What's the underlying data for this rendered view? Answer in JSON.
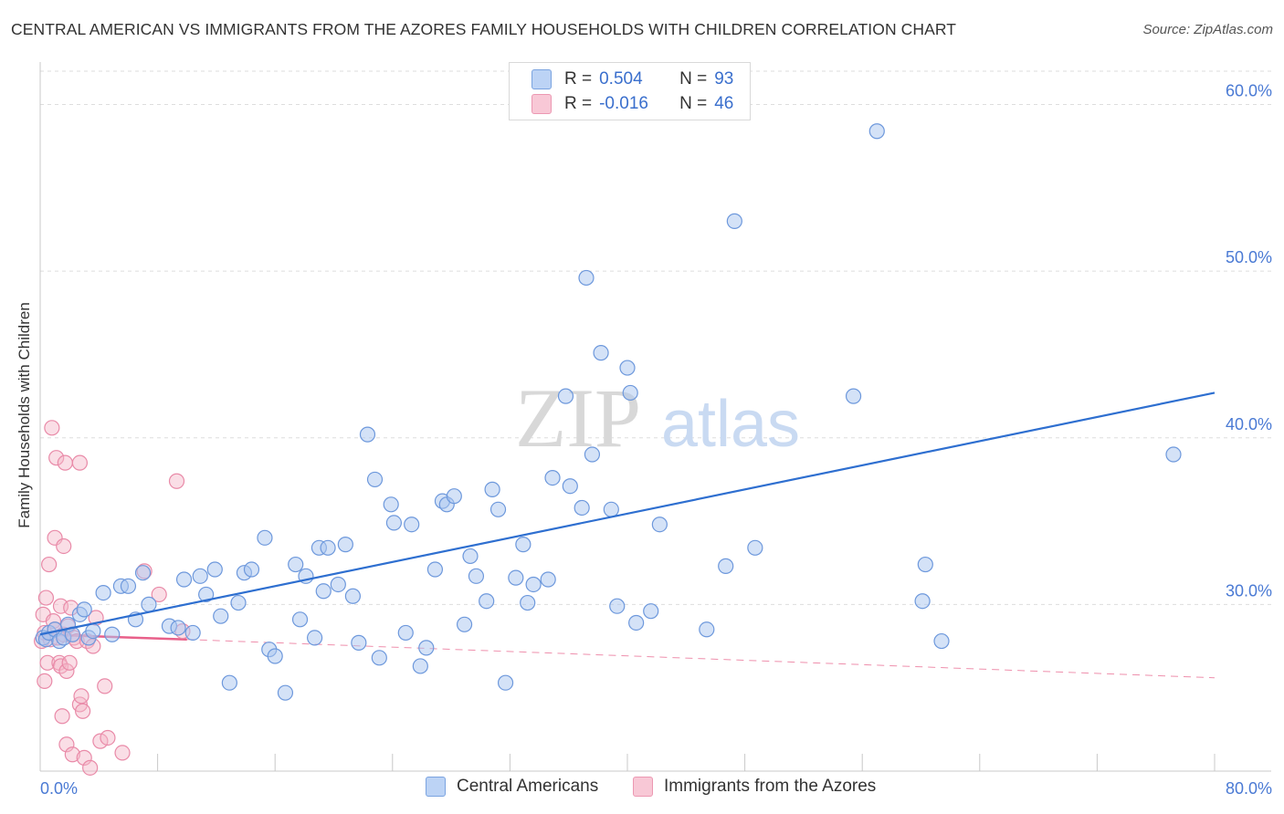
{
  "title": "CENTRAL AMERICAN VS IMMIGRANTS FROM THE AZORES FAMILY HOUSEHOLDS WITH CHILDREN CORRELATION CHART",
  "source": "Source: ZipAtlas.com",
  "watermark": {
    "zip": "ZIP",
    "atlas": "atlas"
  },
  "legend_top": [
    {
      "r_label": "R =",
      "r_value": "0.504",
      "n_label": "N =",
      "n_value": "93"
    },
    {
      "r_label": "R =",
      "r_value": "-0.016",
      "n_label": "N =",
      "n_value": "46"
    }
  ],
  "legend_bottom": [
    "Central Americans",
    "Immigrants from the Azores"
  ],
  "colors": {
    "blue_fill": "#a9c5f0",
    "blue_stroke": "#6d98dc",
    "blue_line": "#2e6fd0",
    "pink_fill": "#f5b5c8",
    "pink_stroke": "#e98aa8",
    "pink_line": "#e8608a",
    "tick_label": "#4a7ad4",
    "grid": "#dddddd"
  },
  "chart_data": {
    "type": "scatter",
    "title": "CENTRAL AMERICAN VS IMMIGRANTS FROM THE AZORES FAMILY HOUSEHOLDS WITH CHILDREN CORRELATION CHART",
    "xlabel": "",
    "ylabel": "Family Households with Children",
    "xlim": [
      0,
      80
    ],
    "ylim": [
      20,
      62
    ],
    "x_tick_labels": [
      "0.0%",
      "80.0%"
    ],
    "y_ticks": [
      30,
      40,
      50,
      60
    ],
    "y_tick_labels": [
      "30.0%",
      "40.0%",
      "50.0%",
      "60.0%"
    ],
    "grid": true,
    "legend_position": "top-center",
    "series": [
      {
        "name": "Central Americans",
        "r": 0.504,
        "n": 93,
        "trend": {
          "x0": 0.0,
          "y0": 28.2,
          "x1": 80.0,
          "y1": 42.7,
          "style": "solid"
        },
        "points": [
          [
            0.2,
            28.0
          ],
          [
            0.4,
            27.9
          ],
          [
            0.6,
            28.3
          ],
          [
            1.0,
            28.5
          ],
          [
            1.3,
            27.8
          ],
          [
            1.6,
            28.0
          ],
          [
            1.9,
            28.8
          ],
          [
            2.2,
            28.2
          ],
          [
            2.7,
            29.4
          ],
          [
            3.0,
            29.7
          ],
          [
            3.3,
            28.0
          ],
          [
            3.6,
            28.4
          ],
          [
            4.3,
            30.7
          ],
          [
            4.9,
            28.2
          ],
          [
            5.5,
            31.1
          ],
          [
            6.0,
            31.1
          ],
          [
            6.5,
            29.1
          ],
          [
            7.0,
            31.9
          ],
          [
            7.4,
            30.0
          ],
          [
            8.8,
            28.7
          ],
          [
            9.4,
            28.6
          ],
          [
            9.8,
            31.5
          ],
          [
            10.4,
            28.3
          ],
          [
            10.9,
            31.7
          ],
          [
            11.3,
            30.6
          ],
          [
            11.9,
            32.1
          ],
          [
            12.3,
            29.3
          ],
          [
            12.9,
            25.3
          ],
          [
            13.5,
            30.1
          ],
          [
            13.9,
            31.9
          ],
          [
            14.4,
            32.1
          ],
          [
            15.3,
            34.0
          ],
          [
            15.6,
            27.3
          ],
          [
            16.0,
            26.9
          ],
          [
            16.7,
            24.7
          ],
          [
            17.4,
            32.4
          ],
          [
            17.7,
            29.1
          ],
          [
            18.1,
            31.7
          ],
          [
            18.7,
            28.0
          ],
          [
            19.0,
            33.4
          ],
          [
            19.3,
            30.8
          ],
          [
            19.6,
            33.4
          ],
          [
            20.3,
            31.2
          ],
          [
            20.8,
            33.6
          ],
          [
            21.3,
            30.5
          ],
          [
            21.7,
            27.7
          ],
          [
            22.3,
            40.2
          ],
          [
            22.8,
            37.5
          ],
          [
            23.1,
            26.8
          ],
          [
            23.9,
            36.0
          ],
          [
            24.1,
            34.9
          ],
          [
            24.9,
            28.3
          ],
          [
            25.3,
            34.8
          ],
          [
            25.9,
            26.3
          ],
          [
            26.3,
            27.4
          ],
          [
            26.9,
            32.1
          ],
          [
            27.4,
            36.2
          ],
          [
            27.7,
            36.0
          ],
          [
            28.2,
            36.5
          ],
          [
            28.9,
            28.8
          ],
          [
            29.3,
            32.9
          ],
          [
            29.7,
            31.7
          ],
          [
            30.4,
            30.2
          ],
          [
            30.8,
            36.9
          ],
          [
            31.2,
            35.7
          ],
          [
            31.7,
            25.3
          ],
          [
            32.4,
            31.6
          ],
          [
            32.9,
            33.6
          ],
          [
            33.2,
            30.1
          ],
          [
            33.6,
            31.2
          ],
          [
            34.6,
            31.5
          ],
          [
            34.9,
            37.6
          ],
          [
            35.8,
            42.5
          ],
          [
            36.1,
            37.1
          ],
          [
            36.9,
            35.8
          ],
          [
            37.2,
            49.6
          ],
          [
            37.6,
            39.0
          ],
          [
            38.2,
            45.1
          ],
          [
            38.9,
            35.7
          ],
          [
            39.3,
            29.9
          ],
          [
            40.0,
            44.2
          ],
          [
            40.2,
            42.7
          ],
          [
            40.6,
            28.9
          ],
          [
            41.6,
            29.6
          ],
          [
            42.2,
            34.8
          ],
          [
            45.4,
            28.5
          ],
          [
            46.7,
            32.3
          ],
          [
            47.3,
            53.0
          ],
          [
            48.7,
            33.4
          ],
          [
            55.4,
            42.5
          ],
          [
            57.0,
            58.4
          ],
          [
            60.1,
            30.2
          ],
          [
            60.3,
            32.4
          ],
          [
            61.4,
            27.8
          ],
          [
            77.2,
            39.0
          ]
        ]
      },
      {
        "name": "Immigrants from the Azores",
        "r": -0.016,
        "n": 46,
        "trend": {
          "x0": 0.0,
          "y0": 28.2,
          "x1": 10.0,
          "y1": 27.9,
          "x_ext": 80.0,
          "y_ext": 25.6,
          "style": "solid-then-dashed"
        },
        "points": [
          [
            0.1,
            27.8
          ],
          [
            0.2,
            29.4
          ],
          [
            0.3,
            28.3
          ],
          [
            0.3,
            25.4
          ],
          [
            0.4,
            30.4
          ],
          [
            0.5,
            26.5
          ],
          [
            0.6,
            32.4
          ],
          [
            0.7,
            27.9
          ],
          [
            0.8,
            40.6
          ],
          [
            0.9,
            29.0
          ],
          [
            1.0,
            34.0
          ],
          [
            1.0,
            28.5
          ],
          [
            1.1,
            38.8
          ],
          [
            1.2,
            28.0
          ],
          [
            1.3,
            26.5
          ],
          [
            1.4,
            29.9
          ],
          [
            1.4,
            26.3
          ],
          [
            1.5,
            23.3
          ],
          [
            1.6,
            33.5
          ],
          [
            1.6,
            28.2
          ],
          [
            1.7,
            38.5
          ],
          [
            1.8,
            21.6
          ],
          [
            1.8,
            26.0
          ],
          [
            1.9,
            28.7
          ],
          [
            2.0,
            26.5
          ],
          [
            2.1,
            29.8
          ],
          [
            2.2,
            21.0
          ],
          [
            2.3,
            28.0
          ],
          [
            2.5,
            27.8
          ],
          [
            2.7,
            38.5
          ],
          [
            2.7,
            24.0
          ],
          [
            2.8,
            24.5
          ],
          [
            2.9,
            23.6
          ],
          [
            3.0,
            20.8
          ],
          [
            3.2,
            27.8
          ],
          [
            3.4,
            20.2
          ],
          [
            3.6,
            27.5
          ],
          [
            3.8,
            29.2
          ],
          [
            4.1,
            21.8
          ],
          [
            4.4,
            25.1
          ],
          [
            4.6,
            22.0
          ],
          [
            5.6,
            21.1
          ],
          [
            7.1,
            32.0
          ],
          [
            8.1,
            30.6
          ],
          [
            9.3,
            37.4
          ],
          [
            9.7,
            28.4
          ]
        ]
      }
    ]
  }
}
